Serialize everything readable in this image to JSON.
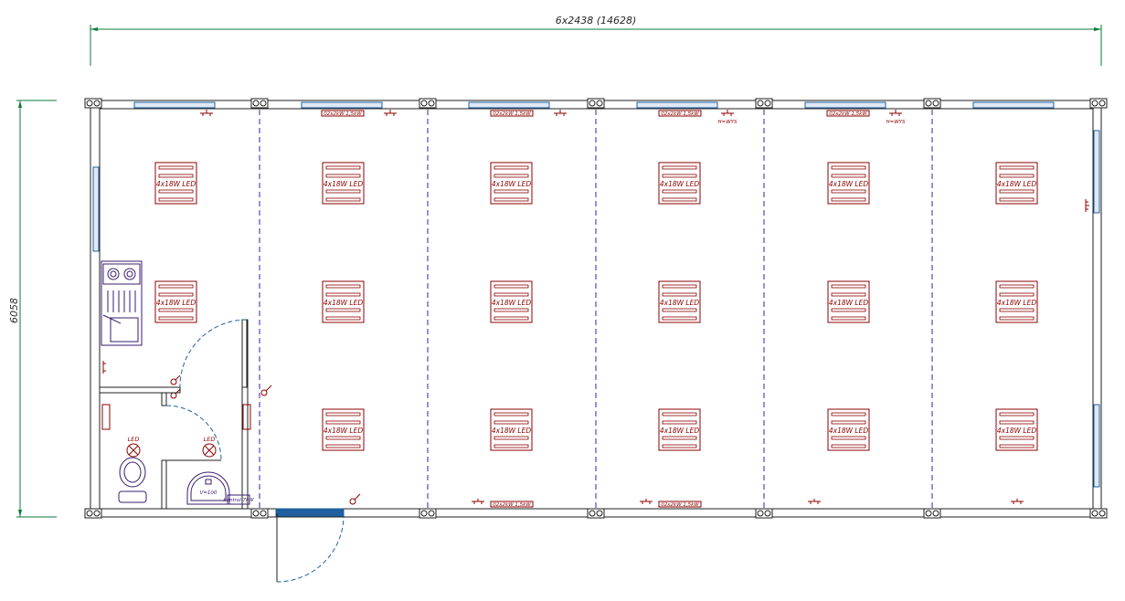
{
  "dimensions": {
    "width_label": "6x2438 (14628)",
    "height_label": "6058"
  },
  "lighting": {
    "fixture_label": "4x18W LED",
    "room_light_label": "LED",
    "rows": 3,
    "columns": 6
  },
  "labels": {
    "heater_label": "02x2kW 1,5kW",
    "wys_label": "H=WYS",
    "boiler_label": "V=100",
    "boiler_panel": "kontrol 7kW"
  },
  "colors": {
    "wall": "#1f1f1f",
    "window": "#1f5fa0",
    "electric": "#8b0000",
    "partition": "#3b1fa0",
    "dimension": "#0c7a3a",
    "fixture": "#3a1d6e"
  }
}
